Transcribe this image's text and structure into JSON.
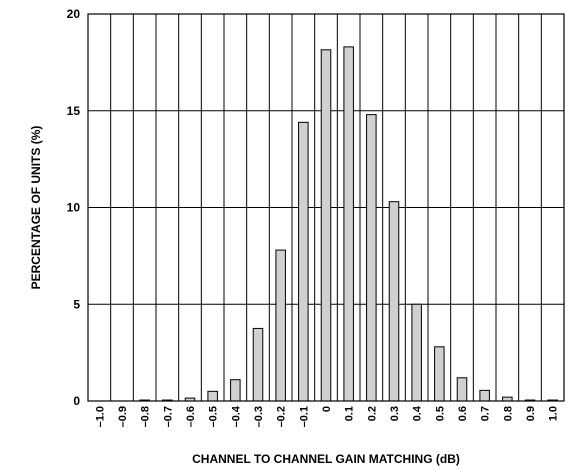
{
  "chart_data": {
    "type": "bar",
    "title": "",
    "xlabel": "CHANNEL TO CHANNEL GAIN MATCHING (dB)",
    "ylabel": "PERCENTAGE OF UNITS (%)",
    "ylim": [
      0,
      20
    ],
    "yticks": [
      "0",
      "5",
      "10",
      "15",
      "20"
    ],
    "grid": true,
    "categories": [
      "–1.0",
      "–0.9",
      "–0.8",
      "–0.7",
      "–0.6",
      "–0.5",
      "–0.4",
      "–0.3",
      "–0.2",
      "–0.1",
      "0",
      "0.1",
      "0.2",
      "0.3",
      "0.4",
      "0.5",
      "0.6",
      "0.7",
      "0.8",
      "0.9",
      "1.0"
    ],
    "values": [
      0,
      0,
      0.05,
      0.05,
      0.15,
      0.5,
      1.1,
      3.75,
      7.8,
      14.4,
      18.15,
      18.3,
      14.8,
      10.3,
      5.0,
      2.8,
      1.2,
      0.55,
      0.2,
      0.05,
      0.05
    ],
    "bar_color": "#d0d0d0",
    "edge_color": "#000000"
  }
}
